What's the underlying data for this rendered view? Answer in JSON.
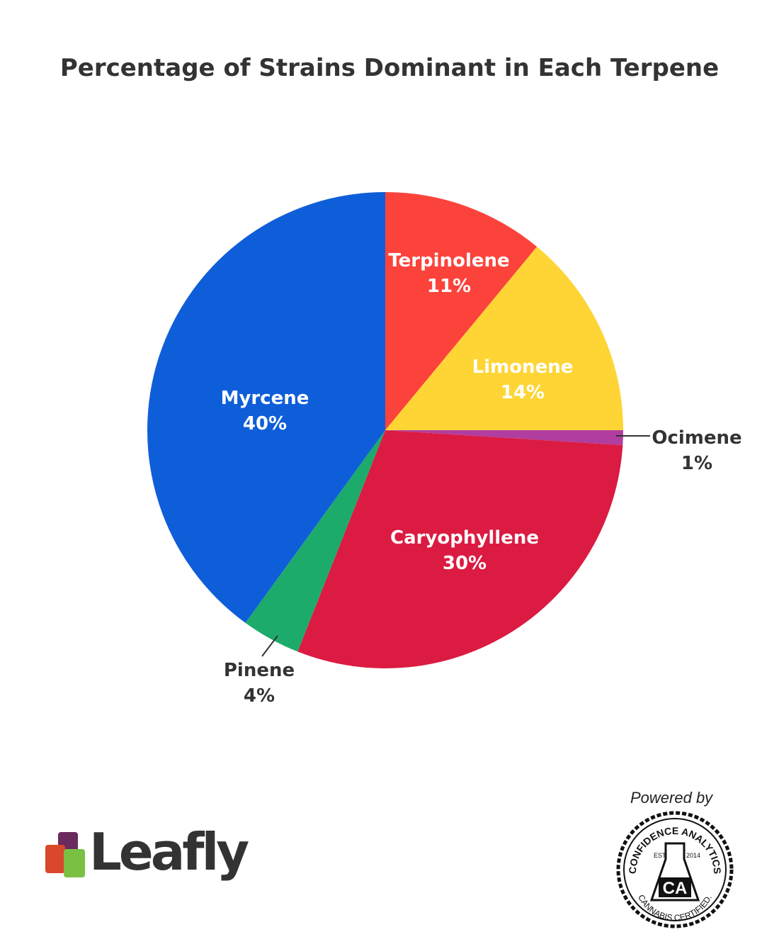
{
  "chart_data": {
    "type": "pie",
    "title": "Percentage of Strains Dominant in Each Terpene",
    "start": "top",
    "direction": "clockwise",
    "slices": [
      {
        "label": "Terpinolene",
        "value": 11,
        "display": "11%",
        "color": "#fb433c",
        "label_position": "inside"
      },
      {
        "label": "Limonene",
        "value": 14,
        "display": "14%",
        "color": "#fed535",
        "label_position": "inside"
      },
      {
        "label": "Ocimene",
        "value": 1,
        "display": "1%",
        "color": "#b03ea0",
        "label_position": "outside"
      },
      {
        "label": "Caryophyllene",
        "value": 30,
        "display": "30%",
        "color": "#db1b42",
        "label_position": "inside"
      },
      {
        "label": "Pinene",
        "value": 4,
        "display": "4%",
        "color": "#1cab6b",
        "label_position": "outside"
      },
      {
        "label": "Myrcene",
        "value": 40,
        "display": "40%",
        "color": "#0f5ed9",
        "label_position": "inside"
      }
    ]
  },
  "branding": {
    "leafly": "Leafly",
    "powered_by": "Powered by",
    "seal_top": "CONFIDENCE ANALYTICS",
    "seal_bottom": "CANNABIS.CERTIFIED.",
    "seal_est": "EST.",
    "seal_year": "2014",
    "seal_mark": "CA"
  }
}
